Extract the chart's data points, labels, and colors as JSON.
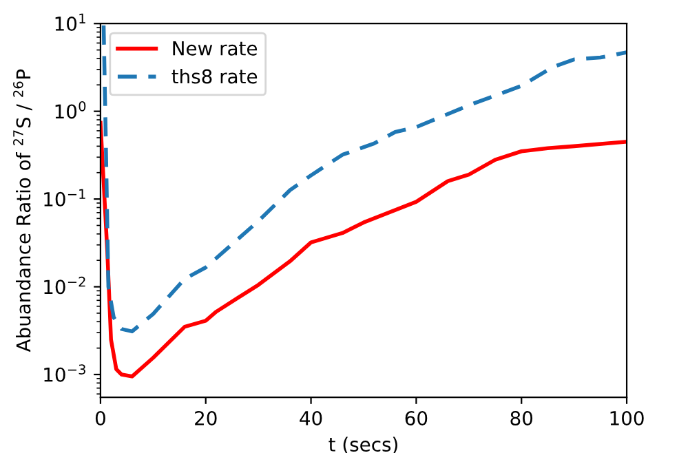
{
  "chart_data": {
    "type": "line",
    "xlabel": "t (secs)",
    "ylabel": "Abuandance Ratio of $^{27}$S / $^{26}$P",
    "log": "y",
    "grid": false,
    "legend": "top left",
    "marker": "none",
    "xlim": [
      0,
      100
    ],
    "xticks": [
      0,
      20,
      40,
      60,
      80,
      100
    ],
    "ylim": [
      0.00055,
      10
    ],
    "yticks": [
      {
        "value": 0.001,
        "label": "10$^{−3}$"
      },
      {
        "value": 0.01,
        "label": "10$^{−2}$"
      },
      {
        "value": 0.1,
        "label": "10$^{−1}$"
      },
      {
        "value": 1,
        "label": "10$^{0}$"
      },
      {
        "value": 10,
        "label": "10$^{1}$"
      }
    ],
    "series": [
      {
        "name": "New rate",
        "color": "#ff0000",
        "line_style": "solid",
        "x": [
          0,
          1.3,
          2,
          3,
          4,
          6,
          10,
          16,
          20,
          22,
          26,
          30,
          36,
          40,
          46,
          50,
          60,
          66,
          70,
          75,
          80,
          85,
          90,
          100
        ],
        "values": [
          0.74,
          0.025,
          0.0025,
          0.00115,
          0.001,
          0.00095,
          0.00155,
          0.0035,
          0.0041,
          0.0052,
          0.0074,
          0.0105,
          0.0195,
          0.032,
          0.041,
          0.054,
          0.093,
          0.16,
          0.19,
          0.28,
          0.35,
          0.38,
          0.4,
          0.45
        ]
      },
      {
        "name": "ths8 rate",
        "color": "#1f77b4",
        "line_style": "dashed",
        "x": [
          0.6,
          1,
          1.5,
          2.5,
          4,
          6,
          10,
          16,
          20,
          30,
          36,
          40,
          46,
          52,
          56,
          60,
          70,
          80,
          86,
          90,
          95,
          100
        ],
        "values": [
          9.5,
          0.5,
          0.01,
          0.0045,
          0.0033,
          0.0031,
          0.0049,
          0.0123,
          0.0166,
          0.056,
          0.126,
          0.186,
          0.32,
          0.43,
          0.58,
          0.66,
          1.17,
          1.95,
          3.2,
          3.9,
          4.1,
          4.7
        ]
      }
    ]
  }
}
